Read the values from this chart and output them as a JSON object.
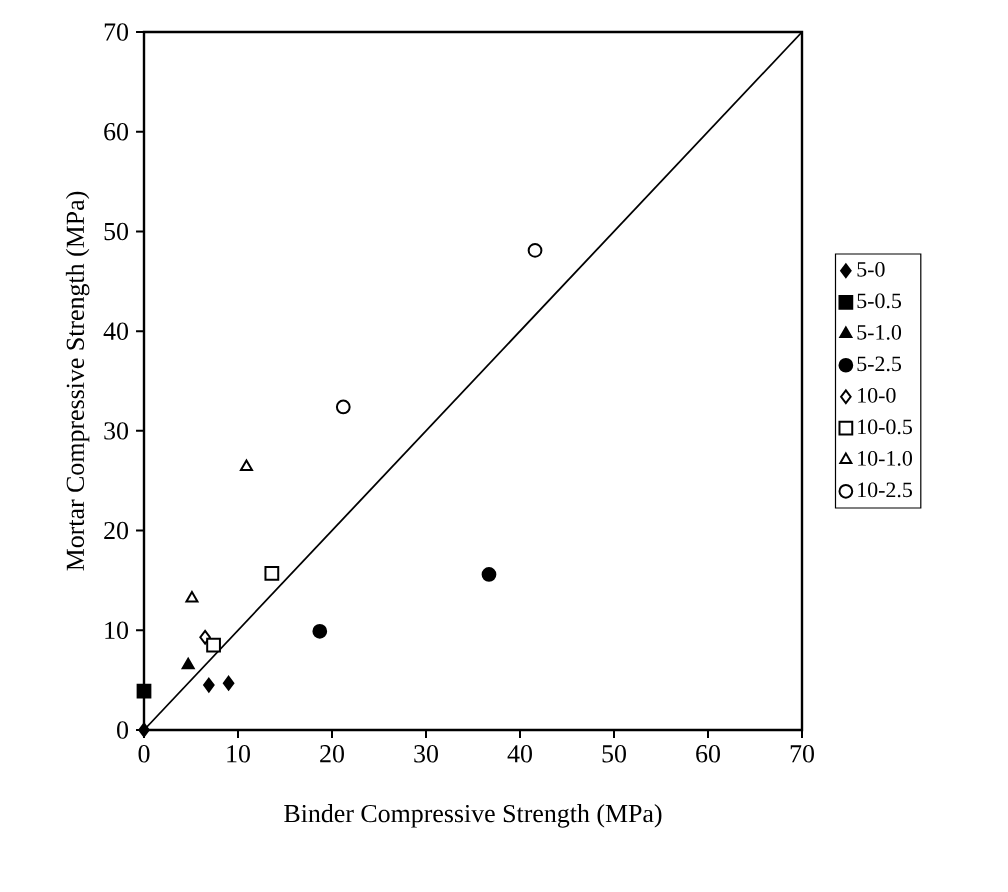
{
  "chart_data": {
    "type": "scatter",
    "xlabel": "Binder Compressive Strength (MPa)",
    "ylabel": "Mortar Compressive Strength (MPa)",
    "xlim": [
      0,
      70
    ],
    "ylim": [
      0,
      70
    ],
    "xticks": [
      0,
      10,
      20,
      30,
      40,
      50,
      60,
      70
    ],
    "yticks": [
      0,
      10,
      20,
      30,
      40,
      50,
      60,
      70
    ],
    "grid": false,
    "legend": "right",
    "series": [
      {
        "name": "5-0",
        "color": "#000000",
        "marker": "diamond",
        "x": [
          0,
          6.9,
          9.0
        ],
        "values": [
          0,
          4.5,
          4.7
        ]
      },
      {
        "name": "5-0.5",
        "color": "#000000",
        "marker": "square",
        "x": [
          0
        ],
        "values": [
          3.9
        ]
      },
      {
        "name": "5-1.0",
        "color": "#000000",
        "marker": "triangle",
        "x": [
          4.7
        ],
        "values": [
          6.5
        ]
      },
      {
        "name": "5-2.5",
        "color": "#000000",
        "marker": "circle",
        "x": [
          18.7,
          36.7
        ],
        "values": [
          9.9,
          15.6
        ]
      },
      {
        "name": "10-0",
        "color": "#ffffff",
        "marker": "diamond",
        "x": [
          6.5
        ],
        "values": [
          9.3
        ]
      },
      {
        "name": "10-0.5",
        "color": "#ffffff",
        "marker": "square",
        "x": [
          7.4,
          13.6
        ],
        "values": [
          8.5,
          15.7
        ]
      },
      {
        "name": "10-1.0",
        "color": "#ffffff",
        "marker": "triangle",
        "x": [
          5.1,
          10.9
        ],
        "values": [
          13.2,
          26.4
        ]
      },
      {
        "name": "10-2.5",
        "color": "#ffffff",
        "marker": "circle",
        "x": [
          21.2,
          41.6
        ],
        "values": [
          32.4,
          48.1
        ]
      },
      {
        "type": "line",
        "color": "#000000",
        "marker": "none",
        "line_style": "solid",
        "x": [
          0,
          70
        ],
        "values": [
          0,
          70
        ]
      }
    ]
  }
}
